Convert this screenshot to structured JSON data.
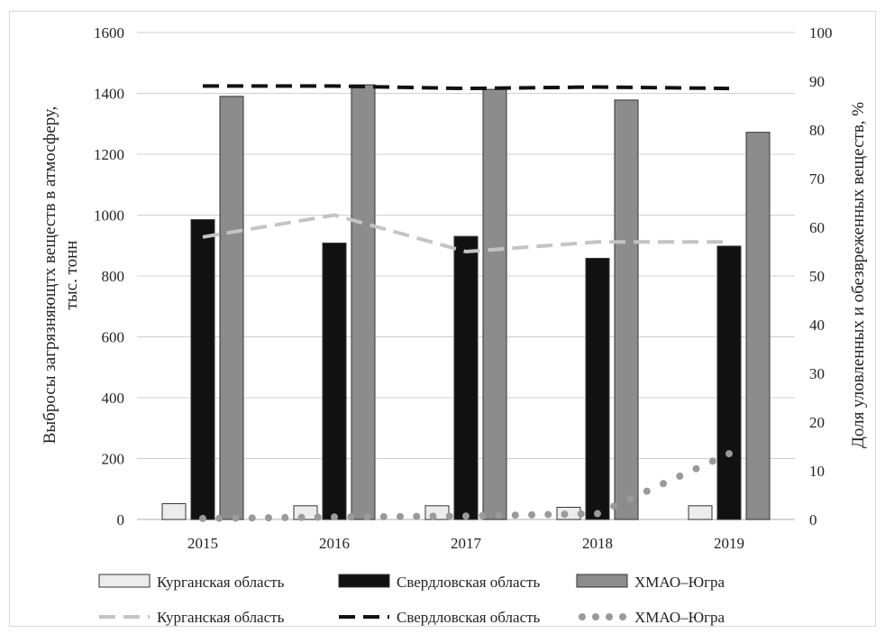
{
  "chart_data": {
    "type": "bar+line",
    "categories": [
      "2015",
      "2016",
      "2017",
      "2018",
      "2019"
    ],
    "y_left": {
      "label_line1": "Выбросы загрязняющтх веществ в атмосферу,",
      "label_line2": "тыс. тонн",
      "ticks": [
        "0",
        "200",
        "400",
        "600",
        "800",
        "1000",
        "1200",
        "1400",
        "1600"
      ],
      "lim": [
        0,
        1600
      ]
    },
    "y_right": {
      "label": "Доля уловленных и обезвреженных веществ, %",
      "ticks": [
        "0",
        "10",
        "20",
        "30",
        "40",
        "50",
        "60",
        "70",
        "80",
        "90",
        "100"
      ],
      "lim": [
        0,
        100
      ]
    },
    "bar_series": [
      {
        "name": "Курганская область",
        "values": [
          52,
          45,
          45,
          40,
          45
        ],
        "color": "#ececec"
      },
      {
        "name": "Свердловская область",
        "values": [
          985,
          908,
          930,
          858,
          898
        ],
        "color": "#111111"
      },
      {
        "name": "ХМАО–Югра",
        "values": [
          1390,
          1428,
          1413,
          1378,
          1272
        ],
        "color": "#8c8c8c"
      }
    ],
    "line_series": [
      {
        "name": "Курганская область",
        "values": [
          58,
          62.5,
          55,
          57,
          57
        ],
        "color": "#c4c4c4",
        "style": "dashed"
      },
      {
        "name": "Свердловская область",
        "values": [
          89,
          89,
          88.5,
          88.8,
          88.5
        ],
        "color": "#111111",
        "style": "dashed"
      },
      {
        "name": "ХМАО–Югра",
        "values": [
          0.2,
          0.5,
          0.7,
          1.2,
          13.5
        ],
        "color": "#9a9a9a",
        "style": "dotted"
      }
    ],
    "grid": true,
    "legend_position": "bottom"
  }
}
